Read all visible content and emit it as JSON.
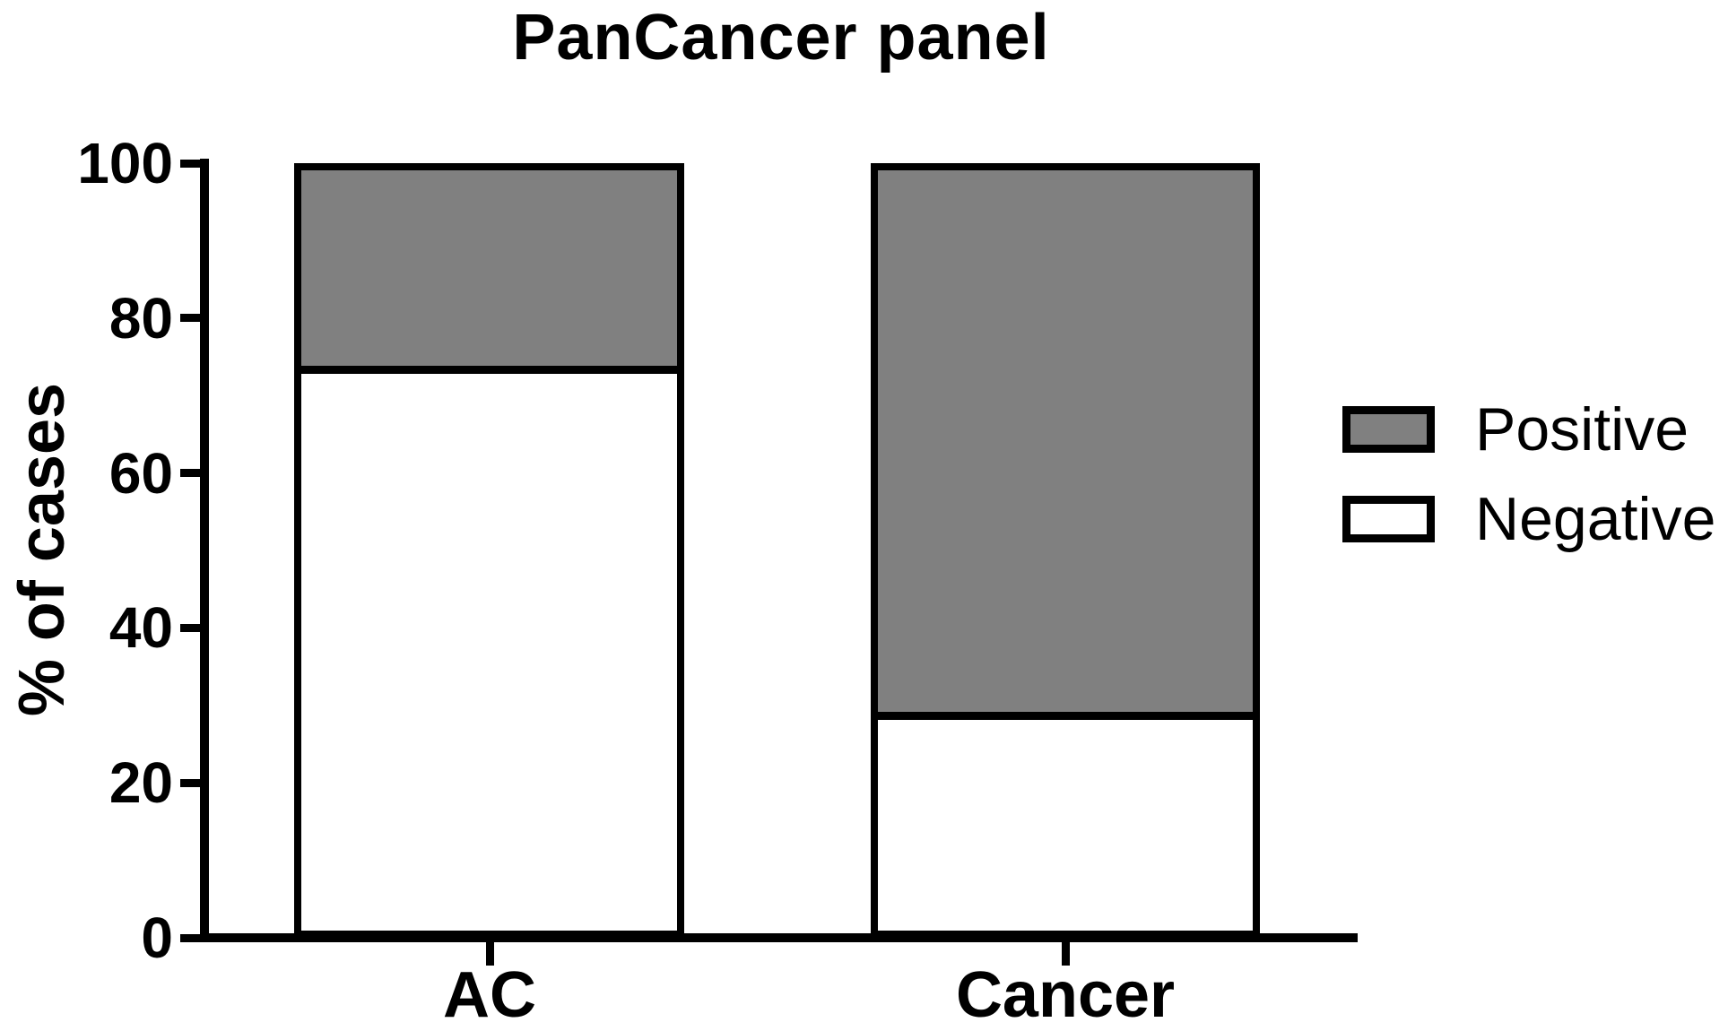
{
  "chart_data": {
    "type": "bar",
    "stacked": true,
    "title": "PanCancer panel",
    "xlabel": "",
    "ylabel": "% of cases",
    "categories": [
      "AC",
      "Cancer"
    ],
    "series": [
      {
        "name": "Positive",
        "values": [
          26,
          72
        ],
        "color": "#808080"
      },
      {
        "name": "Negative",
        "values": [
          74,
          28
        ],
        "color": "#ffffff"
      }
    ],
    "ylim": [
      0,
      100
    ],
    "yticks": [
      0,
      20,
      40,
      60,
      80,
      100
    ],
    "grid": false,
    "legend_position": "right",
    "bar_outline_color": "#000000",
    "axis_color": "#000000"
  }
}
